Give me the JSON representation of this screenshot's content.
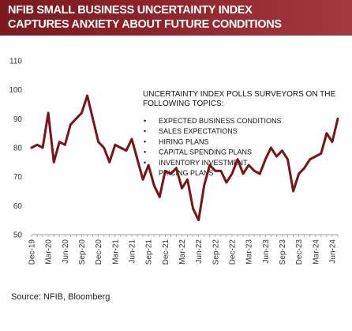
{
  "header": {
    "title_line1": "NFIB SMALL BUSINESS UNCERTAINTY INDEX",
    "title_line2": "CAPTURES ANXIETY ABOUT FUTURE CONDITIONS"
  },
  "source": "Source:  NFIB, Bloomberg",
  "chart_data": {
    "type": "line",
    "title": "",
    "xlabel": "",
    "ylabel": "",
    "ylim": [
      50,
      110
    ],
    "y_ticks": [
      50,
      60,
      70,
      80,
      90,
      100,
      110
    ],
    "x_tick_labels": [
      "Dec-19",
      "Mar-20",
      "Jun-20",
      "Sep-20",
      "Dec-20",
      "Mar-21",
      "Jun-21",
      "Sep-21",
      "Dec-21",
      "Mar-22",
      "Jun-22",
      "Sep-22",
      "Dec-22",
      "Mar-23",
      "Jun-23",
      "Sep-23",
      "Dec-23",
      "Mar-24",
      "Jun-24"
    ],
    "grid": false,
    "legend": "none",
    "line_color": "#7a1418",
    "annotation": {
      "heading_line1": "UNCERTAINTY INDEX POLLS SURVEYORS ON THE",
      "heading_line2": "FOLLOWING TOPICS:",
      "bullet": "•",
      "items": [
        "EXPECTED BUSINESS CONDITIONS",
        "SALES EXPECTATIONS",
        "HIRING PLANS",
        "CAPITAL SPENDING PLANS",
        "INVENTORY INVESTMENT",
        "PRICING PLANS"
      ]
    },
    "series": [
      {
        "x": [
          "Dec-19",
          "Jan-20",
          "Feb-20",
          "Mar-20",
          "Apr-20",
          "May-20",
          "Jun-20",
          "Jul-20",
          "Aug-20",
          "Sep-20",
          "Oct-20",
          "Nov-20",
          "Dec-20",
          "Jan-21",
          "Feb-21",
          "Mar-21",
          "Apr-21",
          "May-21",
          "Jun-21",
          "Jul-21",
          "Aug-21",
          "Sep-21",
          "Oct-21",
          "Nov-21",
          "Dec-21",
          "Jan-22",
          "Feb-22",
          "Mar-22",
          "Apr-22",
          "May-22",
          "Jun-22",
          "Jul-22",
          "Aug-22",
          "Sep-22",
          "Oct-22",
          "Nov-22",
          "Dec-22",
          "Jan-23",
          "Feb-23",
          "Mar-23",
          "Apr-23",
          "May-23",
          "Jun-23",
          "Jul-23",
          "Aug-23",
          "Sep-23",
          "Oct-23",
          "Nov-23",
          "Dec-23",
          "Jan-24",
          "Feb-24",
          "Mar-24",
          "Apr-24",
          "May-24",
          "Jun-24",
          "Jul-24"
        ],
        "values": [
          80,
          81,
          80,
          92,
          75,
          82,
          81,
          88,
          90,
          92,
          98,
          90,
          82,
          80,
          75,
          81,
          80,
          79,
          83,
          76,
          69,
          74,
          67,
          63,
          72,
          71,
          73,
          66,
          69,
          59,
          55,
          67,
          74,
          72,
          72,
          68,
          71,
          76,
          71,
          74,
          72,
          71,
          76,
          80,
          77,
          79,
          76,
          65,
          71,
          73,
          76,
          77,
          78,
          85,
          82,
          90
        ]
      }
    ]
  }
}
